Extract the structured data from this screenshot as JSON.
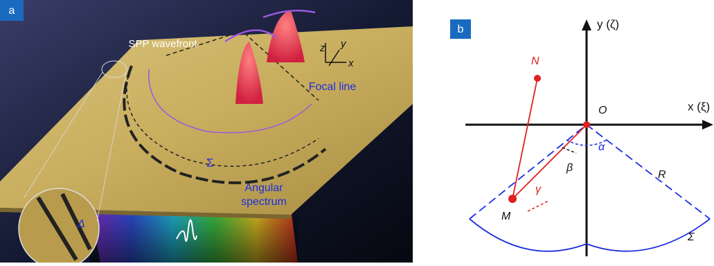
{
  "panel_a": {
    "label": "a",
    "spp_wavefront": "SPP wavefront",
    "focal_line": "Focal line",
    "sigma": "Σ",
    "angular_spectrum": [
      "Angular",
      "spectrum"
    ],
    "delta": "Δ",
    "axes": {
      "z": "z",
      "y": "y",
      "x": "x"
    }
  },
  "panel_b": {
    "label": "b",
    "y_axis": "y (ζ)",
    "x_axis": "x (ξ)",
    "points": {
      "N": "N",
      "O": "O",
      "M": "M"
    },
    "angles": {
      "alpha": "α",
      "beta": "β",
      "gamma": "γ"
    },
    "radius": "R",
    "sigma": "Σ"
  }
}
